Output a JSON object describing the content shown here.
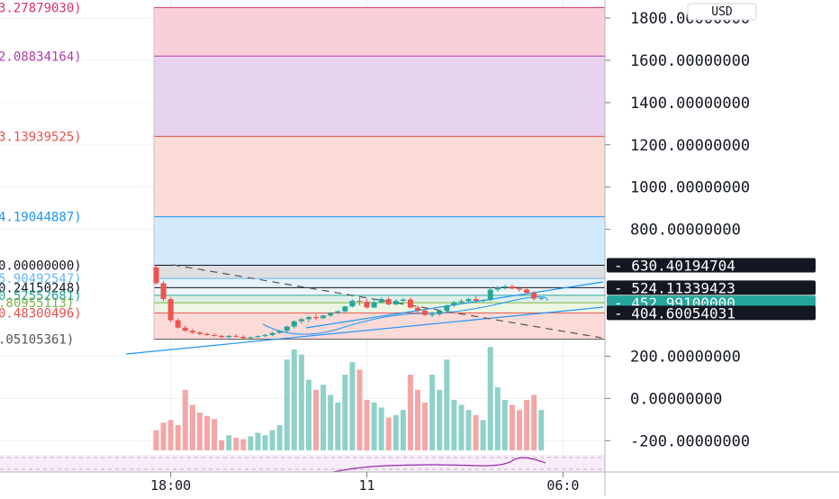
{
  "currency_button": "USD",
  "colors": {
    "up": "#26a69a",
    "down": "#ef5350",
    "vol_up": "#8fd1c8",
    "vol_down": "#f4a6a6",
    "grid": "#eef0f3",
    "axis_text": "#131722",
    "trend": "#2196f3",
    "rsi": "#9c27b0"
  },
  "fib_levels": [
    {
      "label": "3.27879030)",
      "color": "#d6336c",
      "fill": "#f9d0da",
      "value": 1850
    },
    {
      "label": "2.08834164)",
      "color": "#b23fa8",
      "fill": "#e7d3ee",
      "value": 1620
    },
    {
      "label": "3.13939525)",
      "color": "#e5534b",
      "fill": "#fbdcd6",
      "value": 1240
    },
    {
      "label": "4.19044887)",
      "color": "#2196f3",
      "fill": "#d3e9fc",
      "value": 860
    },
    {
      "label": "0.00000000)",
      "color": "#131722",
      "fill": "#dedfe3",
      "value": 630.40194704
    },
    {
      "label": "5.90492547)",
      "color": "#64b5f6",
      "fill": "#e3f2fd",
      "value": 568
    },
    {
      "label": "0.24150248)",
      "color": "#131722",
      "fill": "#eef5f8",
      "value": 524.11339423
    },
    {
      "label": "0.52552681)",
      "color": "#26a69a",
      "fill": "#ddf0ea",
      "value": 488
    },
    {
      "label": ".80955113)",
      "color": "#7cb342",
      "fill": "#edf6e3",
      "value": 452.991
    },
    {
      "label": "0.48300496)",
      "color": "#e5534b",
      "fill": "#fcdad8",
      "value": 404.60054031
    },
    {
      "label": ".05105361)",
      "color": "#555555",
      "fill": "#ffffff",
      "value": 280
    }
  ],
  "chart_data": {
    "type": "candlestick",
    "currency": "USD",
    "y_axis_ticks": [
      "1800.00000000",
      "1600.00000000",
      "1400.00000000",
      "1200.00000000",
      "1000.00000000",
      "800.00000000",
      "200.00000000",
      "0.00000000",
      "-200.00000000"
    ],
    "y_tick_values": [
      1800,
      1600,
      1400,
      1200,
      1000,
      800,
      200,
      0,
      -200
    ],
    "price_labels": [
      {
        "text": "630.40194704",
        "value": 630.40194704,
        "style": "dark"
      },
      {
        "text": "524.11339423",
        "value": 524.11339423,
        "style": "dark"
      },
      {
        "text": "452.99100000",
        "value": 452.991,
        "style": "teal"
      },
      {
        "text": "404.60054031",
        "value": 404.60054031,
        "style": "dark"
      }
    ],
    "x_axis_ticks": [
      {
        "label": "18:00",
        "index": 2
      },
      {
        "label": "11",
        "index": 29
      },
      {
        "label": "06:0",
        "index": 56
      }
    ],
    "candles": [
      {
        "o": 620,
        "h": 630,
        "c": 545,
        "l": 540,
        "v": 40
      },
      {
        "o": 545,
        "h": 555,
        "c": 470,
        "l": 460,
        "v": 55
      },
      {
        "o": 470,
        "h": 480,
        "c": 370,
        "l": 360,
        "v": 60
      },
      {
        "o": 370,
        "h": 378,
        "c": 335,
        "l": 330,
        "v": 50
      },
      {
        "o": 335,
        "h": 345,
        "c": 320,
        "l": 315,
        "v": 120
      },
      {
        "o": 320,
        "h": 330,
        "c": 312,
        "l": 305,
        "v": 90
      },
      {
        "o": 312,
        "h": 320,
        "c": 305,
        "l": 298,
        "v": 75
      },
      {
        "o": 305,
        "h": 312,
        "c": 300,
        "l": 295,
        "v": 68
      },
      {
        "o": 300,
        "h": 308,
        "c": 296,
        "l": 290,
        "v": 62
      },
      {
        "o": 296,
        "h": 302,
        "c": 290,
        "l": 285,
        "v": 20
      },
      {
        "o": 290,
        "h": 300,
        "c": 296,
        "l": 286,
        "v": 30
      },
      {
        "o": 296,
        "h": 304,
        "c": 292,
        "l": 288,
        "v": 25
      },
      {
        "o": 292,
        "h": 300,
        "c": 285,
        "l": 280,
        "v": 22
      },
      {
        "o": 285,
        "h": 292,
        "c": 290,
        "l": 280,
        "v": 28
      },
      {
        "o": 290,
        "h": 298,
        "c": 295,
        "l": 285,
        "v": 35
      },
      {
        "o": 295,
        "h": 305,
        "c": 300,
        "l": 290,
        "v": 30
      },
      {
        "o": 300,
        "h": 315,
        "c": 310,
        "l": 295,
        "v": 40
      },
      {
        "o": 310,
        "h": 322,
        "c": 320,
        "l": 305,
        "v": 50
      },
      {
        "o": 320,
        "h": 345,
        "c": 340,
        "l": 310,
        "v": 180
      },
      {
        "o": 340,
        "h": 370,
        "c": 365,
        "l": 330,
        "v": 200
      },
      {
        "o": 365,
        "h": 382,
        "c": 375,
        "l": 355,
        "v": 190
      },
      {
        "o": 375,
        "h": 390,
        "c": 385,
        "l": 360,
        "v": 140
      },
      {
        "o": 385,
        "h": 400,
        "c": 380,
        "l": 370,
        "v": 120
      },
      {
        "o": 380,
        "h": 395,
        "c": 392,
        "l": 375,
        "v": 130
      },
      {
        "o": 392,
        "h": 408,
        "c": 405,
        "l": 385,
        "v": 110
      },
      {
        "o": 405,
        "h": 418,
        "c": 412,
        "l": 398,
        "v": 95
      },
      {
        "o": 412,
        "h": 440,
        "c": 435,
        "l": 405,
        "v": 150
      },
      {
        "o": 435,
        "h": 470,
        "c": 462,
        "l": 430,
        "v": 175
      },
      {
        "o": 462,
        "h": 480,
        "c": 458,
        "l": 440,
        "v": 160
      },
      {
        "o": 458,
        "h": 472,
        "c": 430,
        "l": 425,
        "v": 100
      },
      {
        "o": 430,
        "h": 468,
        "c": 455,
        "l": 428,
        "v": 95
      },
      {
        "o": 455,
        "h": 478,
        "c": 470,
        "l": 450,
        "v": 85
      },
      {
        "o": 470,
        "h": 480,
        "c": 445,
        "l": 440,
        "v": 65
      },
      {
        "o": 445,
        "h": 470,
        "c": 462,
        "l": 440,
        "v": 70
      },
      {
        "o": 462,
        "h": 475,
        "c": 468,
        "l": 455,
        "v": 80
      },
      {
        "o": 468,
        "h": 478,
        "c": 430,
        "l": 425,
        "v": 150
      },
      {
        "o": 430,
        "h": 440,
        "c": 415,
        "l": 405,
        "v": 120
      },
      {
        "o": 415,
        "h": 425,
        "c": 395,
        "l": 390,
        "v": 95
      },
      {
        "o": 395,
        "h": 410,
        "c": 398,
        "l": 385,
        "v": 150
      },
      {
        "o": 398,
        "h": 420,
        "c": 415,
        "l": 390,
        "v": 120
      },
      {
        "o": 415,
        "h": 445,
        "c": 440,
        "l": 408,
        "v": 180
      },
      {
        "o": 440,
        "h": 462,
        "c": 455,
        "l": 432,
        "v": 100
      },
      {
        "o": 455,
        "h": 470,
        "c": 460,
        "l": 450,
        "v": 90
      },
      {
        "o": 460,
        "h": 478,
        "c": 470,
        "l": 455,
        "v": 80
      },
      {
        "o": 470,
        "h": 485,
        "c": 462,
        "l": 458,
        "v": 70
      },
      {
        "o": 462,
        "h": 470,
        "c": 465,
        "l": 455,
        "v": 60
      },
      {
        "o": 465,
        "h": 525,
        "c": 515,
        "l": 460,
        "v": 205
      },
      {
        "o": 515,
        "h": 532,
        "c": 525,
        "l": 505,
        "v": 125
      },
      {
        "o": 525,
        "h": 538,
        "c": 530,
        "l": 515,
        "v": 100
      },
      {
        "o": 530,
        "h": 540,
        "c": 520,
        "l": 515,
        "v": 90
      },
      {
        "o": 520,
        "h": 530,
        "c": 515,
        "l": 505,
        "v": 80
      },
      {
        "o": 515,
        "h": 530,
        "c": 500,
        "l": 495,
        "v": 100
      },
      {
        "o": 500,
        "h": 508,
        "c": 472,
        "l": 465,
        "v": 110
      },
      {
        "o": 472,
        "h": 480,
        "c": 475,
        "l": 465,
        "v": 80
      }
    ]
  }
}
